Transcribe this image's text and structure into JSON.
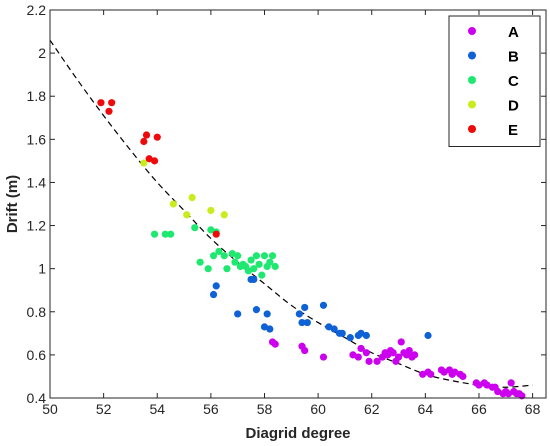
{
  "chart_data": {
    "type": "scatter",
    "title": "",
    "xlabel": "Diagrid degree",
    "ylabel": "Drift (m)",
    "xlim": [
      50,
      68.5
    ],
    "ylim": [
      0.4,
      2.2
    ],
    "xticks": [
      50,
      52,
      54,
      56,
      58,
      60,
      62,
      64,
      66,
      68
    ],
    "yticks": [
      0.4,
      0.6,
      0.8,
      1,
      1.2,
      1.4,
      1.6,
      1.8,
      2,
      2.2
    ],
    "xtick_labels": [
      "50",
      "52",
      "54",
      "56",
      "58",
      "60",
      "62",
      "64",
      "66",
      "68"
    ],
    "ytick_labels": [
      "0.4",
      "0.6",
      "0.8",
      "1",
      "1.2",
      "1.4",
      "1.6",
      "1.8",
      "2",
      "2.2"
    ],
    "grid": false,
    "legend_position": "top-right",
    "series": [
      {
        "name": "A",
        "color": "#cc00ee",
        "points": [
          [
            58.3,
            0.66
          ],
          [
            58.4,
            0.65
          ],
          [
            59.4,
            0.64
          ],
          [
            59.5,
            0.62
          ],
          [
            60.2,
            0.59
          ],
          [
            61.3,
            0.6
          ],
          [
            61.5,
            0.59
          ],
          [
            61.6,
            0.63
          ],
          [
            61.8,
            0.61
          ],
          [
            61.9,
            0.57
          ],
          [
            62.2,
            0.57
          ],
          [
            62.4,
            0.59
          ],
          [
            62.5,
            0.61
          ],
          [
            62.6,
            0.6
          ],
          [
            62.7,
            0.62
          ],
          [
            62.8,
            0.61
          ],
          [
            62.9,
            0.57
          ],
          [
            63.0,
            0.59
          ],
          [
            63.1,
            0.66
          ],
          [
            63.2,
            0.61
          ],
          [
            63.3,
            0.6
          ],
          [
            63.4,
            0.62
          ],
          [
            63.5,
            0.59
          ],
          [
            63.6,
            0.6
          ],
          [
            63.9,
            0.51
          ],
          [
            64.1,
            0.52
          ],
          [
            64.2,
            0.51
          ],
          [
            64.6,
            0.53
          ],
          [
            64.7,
            0.52
          ],
          [
            64.9,
            0.53
          ],
          [
            65.0,
            0.51
          ],
          [
            65.1,
            0.52
          ],
          [
            65.3,
            0.51
          ],
          [
            65.4,
            0.5
          ],
          [
            65.9,
            0.47
          ],
          [
            66.0,
            0.46
          ],
          [
            66.2,
            0.47
          ],
          [
            66.3,
            0.46
          ],
          [
            66.5,
            0.45
          ],
          [
            66.6,
            0.45
          ],
          [
            66.7,
            0.43
          ],
          [
            66.9,
            0.42
          ],
          [
            67.0,
            0.43
          ],
          [
            67.1,
            0.42
          ],
          [
            67.2,
            0.47
          ],
          [
            67.3,
            0.43
          ],
          [
            67.4,
            0.42
          ],
          [
            67.5,
            0.42
          ],
          [
            67.6,
            0.41
          ]
        ]
      },
      {
        "name": "B",
        "color": "#0f62d6",
        "points": [
          [
            56.1,
            0.88
          ],
          [
            56.2,
            0.92
          ],
          [
            57.0,
            0.79
          ],
          [
            57.5,
            0.95
          ],
          [
            57.6,
            0.95
          ],
          [
            57.7,
            0.81
          ],
          [
            58.0,
            0.73
          ],
          [
            58.1,
            0.79
          ],
          [
            58.2,
            0.72
          ],
          [
            59.3,
            0.79
          ],
          [
            59.4,
            0.75
          ],
          [
            59.5,
            0.82
          ],
          [
            59.6,
            0.75
          ],
          [
            60.2,
            0.83
          ],
          [
            60.4,
            0.73
          ],
          [
            60.6,
            0.72
          ],
          [
            60.8,
            0.7
          ],
          [
            60.9,
            0.7
          ],
          [
            61.2,
            0.68
          ],
          [
            61.5,
            0.69
          ],
          [
            61.6,
            0.7
          ],
          [
            61.8,
            0.69
          ],
          [
            64.1,
            0.69
          ]
        ]
      },
      {
        "name": "C",
        "color": "#1fe870",
        "points": [
          [
            53.9,
            1.16
          ],
          [
            54.3,
            1.16
          ],
          [
            54.5,
            1.16
          ],
          [
            55.4,
            1.19
          ],
          [
            55.6,
            1.03
          ],
          [
            56.0,
            1.18
          ],
          [
            56.1,
            1.06
          ],
          [
            56.2,
            1.17
          ],
          [
            55.9,
            1.0
          ],
          [
            56.3,
            1.08
          ],
          [
            56.5,
            1.06
          ],
          [
            56.6,
            1.0
          ],
          [
            56.8,
            1.07
          ],
          [
            56.9,
            1.03
          ],
          [
            57.0,
            1.06
          ],
          [
            57.1,
            1.01
          ],
          [
            57.2,
            1.02
          ],
          [
            57.3,
            1.01
          ],
          [
            57.4,
            0.99
          ],
          [
            57.5,
            1.04
          ],
          [
            57.6,
            1.0
          ],
          [
            57.7,
            1.06
          ],
          [
            57.8,
            1.02
          ],
          [
            57.9,
            0.97
          ],
          [
            58.0,
            1.06
          ],
          [
            58.1,
            1.01
          ],
          [
            58.2,
            1.03
          ],
          [
            58.3,
            1.06
          ],
          [
            58.4,
            1.01
          ]
        ]
      },
      {
        "name": "D",
        "color": "#c8ec1e",
        "points": [
          [
            53.5,
            1.49
          ],
          [
            54.6,
            1.3
          ],
          [
            55.1,
            1.25
          ],
          [
            55.3,
            1.33
          ],
          [
            56.0,
            1.27
          ],
          [
            56.5,
            1.25
          ]
        ]
      },
      {
        "name": "E",
        "color": "#ee0a0a",
        "points": [
          [
            51.9,
            1.77
          ],
          [
            52.2,
            1.73
          ],
          [
            52.3,
            1.77
          ],
          [
            53.5,
            1.59
          ],
          [
            53.6,
            1.62
          ],
          [
            53.7,
            1.51
          ],
          [
            53.9,
            1.5
          ],
          [
            54.0,
            1.61
          ],
          [
            56.2,
            1.16
          ]
        ]
      }
    ],
    "fit_curve": {
      "style": "dashed",
      "color": "#000000",
      "points": [
        [
          50,
          2.06
        ],
        [
          51,
          1.88
        ],
        [
          52,
          1.71
        ],
        [
          53,
          1.55
        ],
        [
          54,
          1.4
        ],
        [
          55,
          1.27
        ],
        [
          56,
          1.14
        ],
        [
          57,
          1.03
        ],
        [
          58,
          0.93
        ],
        [
          59,
          0.83
        ],
        [
          60,
          0.75
        ],
        [
          61,
          0.68
        ],
        [
          62,
          0.61
        ],
        [
          63,
          0.56
        ],
        [
          64,
          0.51
        ],
        [
          65,
          0.48
        ],
        [
          66,
          0.46
        ],
        [
          67,
          0.45
        ],
        [
          68,
          0.46
        ]
      ]
    }
  }
}
